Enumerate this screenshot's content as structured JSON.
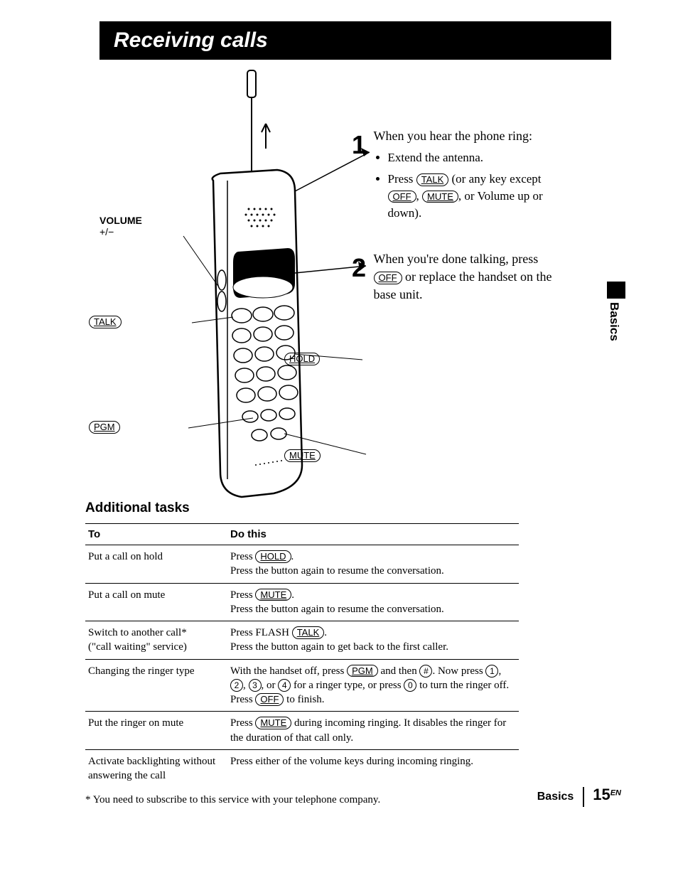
{
  "title": "Receiving calls",
  "labels": {
    "volume": "VOLUME",
    "volume_sub": "+/−",
    "talk": "TALK",
    "pgm": "PGM",
    "hold": "HOLD",
    "mute": "MUTE"
  },
  "steps": [
    {
      "num": "1",
      "intro": "When you hear the phone ring:",
      "bullets": [
        {
          "text": "Extend the antenna."
        },
        {
          "prefix": "Press ",
          "key": "TALK",
          "suffix": " (or any key except ",
          "key2": "OFF",
          "mid": ", ",
          "key3": "MUTE",
          "tail": ", or Volume up or down)."
        }
      ]
    },
    {
      "num": "2",
      "text_pre": "When you're done talking, press ",
      "key": "OFF",
      "text_post": " or replace the handset on the base unit."
    }
  ],
  "tasks_heading": "Additional tasks",
  "table": {
    "col_to": "To",
    "col_do": "Do this",
    "rows": [
      {
        "to": "Put a call on hold",
        "do_segments": [
          "Press ",
          {
            "key": "HOLD"
          },
          ".",
          "<br>",
          "Press the button again to resume the conversation."
        ]
      },
      {
        "to": "Put a call on mute",
        "do_segments": [
          "Press ",
          {
            "key": "MUTE"
          },
          ".",
          "<br>",
          "Press the button again to resume the conversation."
        ]
      },
      {
        "to": "Switch to another call*\n(\"call waiting\" service)",
        "do_segments": [
          "Press FLASH ",
          {
            "key": "TALK"
          },
          ".",
          "<br>",
          "Press the button again to get back to the first caller."
        ]
      },
      {
        "to": "Changing the ringer type",
        "do_segments": [
          "With the handset off, press ",
          {
            "key": "PGM"
          },
          " and then ",
          {
            "ckey": "#"
          },
          ". Now press ",
          {
            "ckey": "1"
          },
          ", ",
          {
            "ckey": "2"
          },
          ", ",
          {
            "ckey": "3"
          },
          ", or ",
          {
            "ckey": "4"
          },
          " for a ringer type, or press ",
          {
            "ckey": "0"
          },
          " to turn the ringer off. Press ",
          {
            "key": "OFF"
          },
          " to finish."
        ]
      },
      {
        "to": "Put the ringer on mute",
        "do_segments": [
          "Press ",
          {
            "key": "MUTE"
          },
          " during incoming ringing. It disables the ringer for the duration of that call only."
        ]
      },
      {
        "to": "Activate backlighting without answering the call",
        "do_segments": [
          "Press either of the volume keys during incoming ringing."
        ],
        "noborder": true
      }
    ]
  },
  "footnote": "* You need to subscribe to this service with your telephone company.",
  "side_tab": "Basics",
  "footer_section": "Basics",
  "footer_page": "15",
  "footer_sup": "EN"
}
